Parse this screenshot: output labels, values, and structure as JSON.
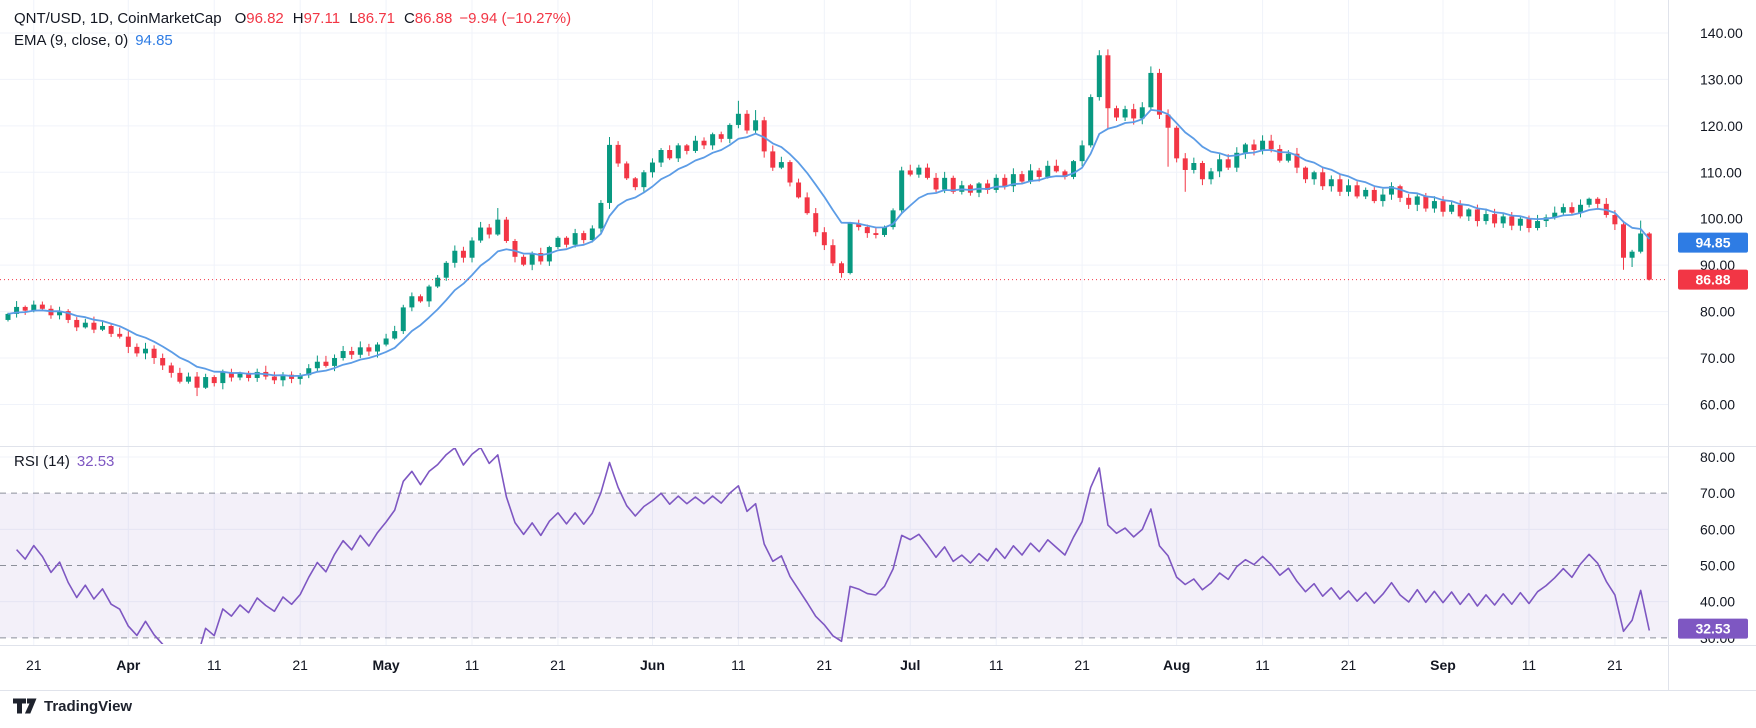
{
  "header": {
    "title": "QNT/USD, 1D, CoinMarketCap",
    "o_label": "O",
    "o": "96.82",
    "h_label": "H",
    "h": "97.11",
    "l_label": "L",
    "l": "86.71",
    "c_label": "C",
    "c": "86.88",
    "change": "−9.94 (−10.27%)",
    "ema_title": "EMA (9, close, 0)",
    "ema_value": "94.85",
    "rsi_title": "RSI (14)",
    "rsi_value": "32.53"
  },
  "attribution": {
    "label": "TradingView"
  },
  "colors": {
    "up": "#089981",
    "down": "#f23645",
    "ema_line": "#5c9ce6",
    "ema_badge": "#2e7ce4",
    "rsi_line": "#7e57c2",
    "rsi_badge": "#7e57c2",
    "last_price_line": "#f23645",
    "grid": "#f0f3fa",
    "limit_line": "#8c909a",
    "band_fill": "rgba(126,87,194,0.09)",
    "separator": "#e0e3eb",
    "axis_text": "#131722",
    "badge_text": "#ffffff"
  },
  "price_axis": {
    "ticks": [
      140,
      130,
      120,
      110,
      100,
      90,
      80,
      70,
      60
    ],
    "badges": [
      {
        "text": "94.85",
        "value": 94.85,
        "type": "ema"
      },
      {
        "text": "86.88",
        "value": 86.88,
        "type": "last-price"
      }
    ]
  },
  "rsi_axis": {
    "ticks": [
      80,
      70,
      60,
      50,
      40,
      30
    ],
    "badge": {
      "text": "32.53",
      "value": 32.53
    }
  },
  "time_axis": {
    "labels": [
      {
        "text": "21",
        "day": 3,
        "bold": false
      },
      {
        "text": "Apr",
        "day": 14,
        "bold": true
      },
      {
        "text": "11",
        "day": 24,
        "bold": false
      },
      {
        "text": "21",
        "day": 34,
        "bold": false
      },
      {
        "text": "May",
        "day": 44,
        "bold": true
      },
      {
        "text": "11",
        "day": 54,
        "bold": false
      },
      {
        "text": "21",
        "day": 64,
        "bold": false
      },
      {
        "text": "Jun",
        "day": 75,
        "bold": true
      },
      {
        "text": "11",
        "day": 85,
        "bold": false
      },
      {
        "text": "21",
        "day": 95,
        "bold": false
      },
      {
        "text": "Jul",
        "day": 105,
        "bold": true
      },
      {
        "text": "11",
        "day": 115,
        "bold": false
      },
      {
        "text": "21",
        "day": 125,
        "bold": false
      },
      {
        "text": "Aug",
        "day": 136,
        "bold": true
      },
      {
        "text": "11",
        "day": 146,
        "bold": false
      },
      {
        "text": "21",
        "day": 156,
        "bold": false
      },
      {
        "text": "Sep",
        "day": 167,
        "bold": true
      },
      {
        "text": "11",
        "day": 177,
        "bold": false
      },
      {
        "text": "21",
        "day": 187,
        "bold": false
      }
    ]
  },
  "chart_data": {
    "type": "candlestick",
    "symbol": "QNT/USD",
    "interval": "1D",
    "data_source": "CoinMarketCap",
    "legend_position": "top-left",
    "grid": true,
    "price_pane_ylim": [
      57,
      143
    ],
    "rsi_pane_ylim": [
      24,
      83
    ],
    "open_first": 78.2,
    "closes": [
      79.5,
      81.0,
      80.2,
      81.5,
      80.6,
      79.2,
      80.1,
      78.2,
      76.6,
      77.6,
      76.1,
      76.9,
      75.2,
      74.6,
      72.4,
      71.0,
      72.0,
      70.0,
      68.4,
      66.8,
      64.9,
      66.0,
      63.6,
      65.9,
      64.6,
      66.9,
      65.8,
      66.8,
      65.7,
      67.0,
      66.0,
      65.2,
      66.4,
      65.5,
      66.3,
      67.8,
      69.2,
      68.3,
      70.0,
      71.5,
      70.7,
      72.3,
      71.4,
      72.9,
      74.2,
      75.8,
      80.9,
      83.3,
      82.2,
      85.4,
      87.3,
      90.5,
      93.1,
      91.6,
      95.3,
      98.1,
      96.6,
      99.8,
      95.2,
      91.8,
      90.1,
      92.6,
      90.8,
      93.9,
      95.9,
      94.4,
      96.9,
      95.4,
      97.9,
      103.4,
      115.9,
      111.9,
      108.7,
      106.8,
      110.0,
      112.1,
      114.8,
      113.0,
      115.8,
      114.6,
      116.8,
      115.8,
      118.2,
      117.2,
      120.2,
      122.6,
      119.0,
      121.2,
      114.5,
      111.0,
      112.2,
      107.8,
      104.6,
      101.2,
      97.1,
      94.3,
      90.4,
      88.3,
      99.0,
      98.2,
      96.9,
      96.5,
      98.2,
      101.8,
      110.4,
      109.5,
      111.0,
      108.8,
      106.3,
      108.8,
      105.8,
      107.2,
      105.6,
      107.6,
      106.2,
      108.8,
      107.0,
      109.6,
      108.0,
      110.4,
      109.0,
      111.4,
      110.2,
      109.0,
      112.4,
      115.8,
      126.2,
      135.2,
      123.8,
      121.8,
      123.6,
      121.6,
      124.0,
      131.4,
      122.4,
      119.6,
      113.0,
      110.5,
      112.0,
      108.5,
      110.2,
      112.8,
      111.0,
      114.2,
      116.0,
      114.8,
      116.8,
      115.0,
      112.5,
      114.0,
      111.0,
      108.5,
      110.0,
      107.0,
      108.5,
      105.8,
      107.2,
      104.8,
      106.2,
      103.8,
      105.2,
      107.0,
      104.5,
      103.0,
      104.8,
      102.2,
      103.8,
      101.5,
      103.0,
      100.5,
      102.0,
      99.5,
      101.0,
      99.0,
      100.5,
      98.5,
      100.0,
      98.0,
      99.5,
      100.3,
      101.3,
      102.5,
      101.3,
      103.0,
      104.3,
      103.2,
      100.8,
      98.8,
      91.6,
      92.9,
      96.82,
      86.88
    ],
    "wick_overrides": {
      "22": {
        "l": 61.8
      },
      "57": {
        "h": 102.3
      },
      "70": {
        "h": 117.6
      },
      "85": {
        "h": 125.4
      },
      "87": {
        "h": 123.4
      },
      "97": {
        "l": 87.3
      },
      "98": {
        "l": 88.0
      },
      "127": {
        "h": 136.3
      },
      "128": {
        "l": 119.3
      },
      "133": {
        "h": 132.8
      },
      "135": {
        "l": 111.2
      },
      "137": {
        "l": 105.8
      },
      "188": {
        "l": 89.0
      },
      "189": {
        "l": 89.6
      },
      "190": {
        "h": 99.6
      },
      "191": {
        "h": 97.11,
        "l": 86.71
      }
    },
    "last_candle": {
      "o": 96.82,
      "h": 97.11,
      "l": 86.71,
      "c": 86.88
    },
    "last_price": 86.88,
    "indicators": [
      {
        "name": "EMA",
        "length": 9,
        "source": "close",
        "offset": 0,
        "last_value": 94.85
      },
      {
        "name": "RSI",
        "length": 14,
        "last_value": 32.53,
        "overbought": 70,
        "midline": 50,
        "oversold": 30
      }
    ]
  }
}
